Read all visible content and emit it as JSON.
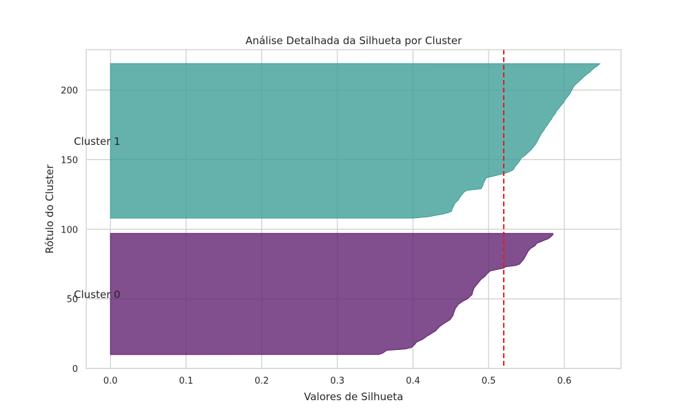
{
  "chart_data": {
    "type": "area",
    "title": "Análise Detalhada da Silhueta por Cluster",
    "xlabel": "Valores de Silhueta",
    "ylabel": "Rótulo do Cluster",
    "xlim": [
      -0.032,
      0.675
    ],
    "ylim": [
      0,
      229
    ],
    "xticks": [
      "0.0",
      "0.1",
      "0.2",
      "0.3",
      "0.4",
      "0.5",
      "0.6"
    ],
    "xtick_values": [
      0.0,
      0.1,
      0.2,
      0.3,
      0.4,
      0.5,
      0.6
    ],
    "yticks": [
      "0",
      "50",
      "100",
      "150",
      "200"
    ],
    "ytick_values": [
      0,
      50,
      100,
      150,
      200
    ],
    "grid": true,
    "average_silhouette": 0.52,
    "average_line_color": "#e31a1c",
    "series": [
      {
        "name": "Cluster 0",
        "color": "#5e1c6e",
        "y_start": 10,
        "y_end": 97,
        "profile": [
          [
            10,
            0.355
          ],
          [
            11,
            0.36
          ],
          [
            13,
            0.365
          ],
          [
            14,
            0.39
          ],
          [
            15,
            0.398
          ],
          [
            17,
            0.402
          ],
          [
            19,
            0.405
          ],
          [
            21,
            0.413
          ],
          [
            23,
            0.418
          ],
          [
            25,
            0.424
          ],
          [
            27,
            0.43
          ],
          [
            30,
            0.435
          ],
          [
            33,
            0.443
          ],
          [
            35,
            0.449
          ],
          [
            38,
            0.453
          ],
          [
            40,
            0.454
          ],
          [
            43,
            0.456
          ],
          [
            46,
            0.46
          ],
          [
            48,
            0.465
          ],
          [
            50,
            0.472
          ],
          [
            53,
            0.478
          ],
          [
            55,
            0.479
          ],
          [
            58,
            0.481
          ],
          [
            60,
            0.484
          ],
          [
            62,
            0.487
          ],
          [
            64,
            0.49
          ],
          [
            66,
            0.495
          ],
          [
            68,
            0.498
          ],
          [
            70,
            0.502
          ],
          [
            71,
            0.51
          ],
          [
            72,
            0.52
          ],
          [
            73,
            0.522
          ],
          [
            74,
            0.536
          ],
          [
            75,
            0.541
          ],
          [
            77,
            0.544
          ],
          [
            78,
            0.546
          ],
          [
            80,
            0.548
          ],
          [
            82,
            0.55
          ],
          [
            84,
            0.552
          ],
          [
            86,
            0.555
          ],
          [
            88,
            0.561
          ],
          [
            90,
            0.564
          ],
          [
            91,
            0.569
          ],
          [
            92,
            0.573
          ],
          [
            93,
            0.578
          ],
          [
            94,
            0.581
          ],
          [
            95,
            0.583
          ],
          [
            96,
            0.585
          ],
          [
            97,
            0.585
          ]
        ]
      },
      {
        "name": "Cluster 1",
        "color": "#3a9c96",
        "y_start": 108,
        "y_end": 219,
        "profile": [
          [
            108,
            0.4
          ],
          [
            109,
            0.42
          ],
          [
            110,
            0.43
          ],
          [
            111,
            0.44
          ],
          [
            112,
            0.447
          ],
          [
            113,
            0.451
          ],
          [
            115,
            0.452
          ],
          [
            117,
            0.454
          ],
          [
            119,
            0.456
          ],
          [
            121,
            0.46
          ],
          [
            123,
            0.462
          ],
          [
            125,
            0.465
          ],
          [
            127,
            0.468
          ],
          [
            128,
            0.472
          ],
          [
            129,
            0.49
          ],
          [
            131,
            0.492
          ],
          [
            134,
            0.494
          ],
          [
            137,
            0.497
          ],
          [
            138,
            0.505
          ],
          [
            140,
            0.52
          ],
          [
            141,
            0.526
          ],
          [
            142,
            0.53
          ],
          [
            143,
            0.533
          ],
          [
            145,
            0.535
          ],
          [
            147,
            0.538
          ],
          [
            149,
            0.541
          ],
          [
            151,
            0.543
          ],
          [
            153,
            0.548
          ],
          [
            155,
            0.552
          ],
          [
            157,
            0.556
          ],
          [
            159,
            0.559
          ],
          [
            161,
            0.562
          ],
          [
            163,
            0.564
          ],
          [
            165,
            0.566
          ],
          [
            167,
            0.568
          ],
          [
            169,
            0.57
          ],
          [
            171,
            0.573
          ],
          [
            173,
            0.575
          ],
          [
            175,
            0.578
          ],
          [
            177,
            0.58
          ],
          [
            179,
            0.583
          ],
          [
            181,
            0.585
          ],
          [
            183,
            0.588
          ],
          [
            185,
            0.59
          ],
          [
            187,
            0.593
          ],
          [
            189,
            0.596
          ],
          [
            191,
            0.599
          ],
          [
            193,
            0.601
          ],
          [
            195,
            0.604
          ],
          [
            197,
            0.607
          ],
          [
            199,
            0.609
          ],
          [
            201,
            0.611
          ],
          [
            203,
            0.613
          ],
          [
            205,
            0.617
          ],
          [
            207,
            0.621
          ],
          [
            209,
            0.625
          ],
          [
            211,
            0.629
          ],
          [
            213,
            0.634
          ],
          [
            215,
            0.638
          ],
          [
            216,
            0.64
          ],
          [
            217,
            0.643
          ],
          [
            218,
            0.645
          ],
          [
            219,
            0.647
          ]
        ]
      }
    ]
  }
}
